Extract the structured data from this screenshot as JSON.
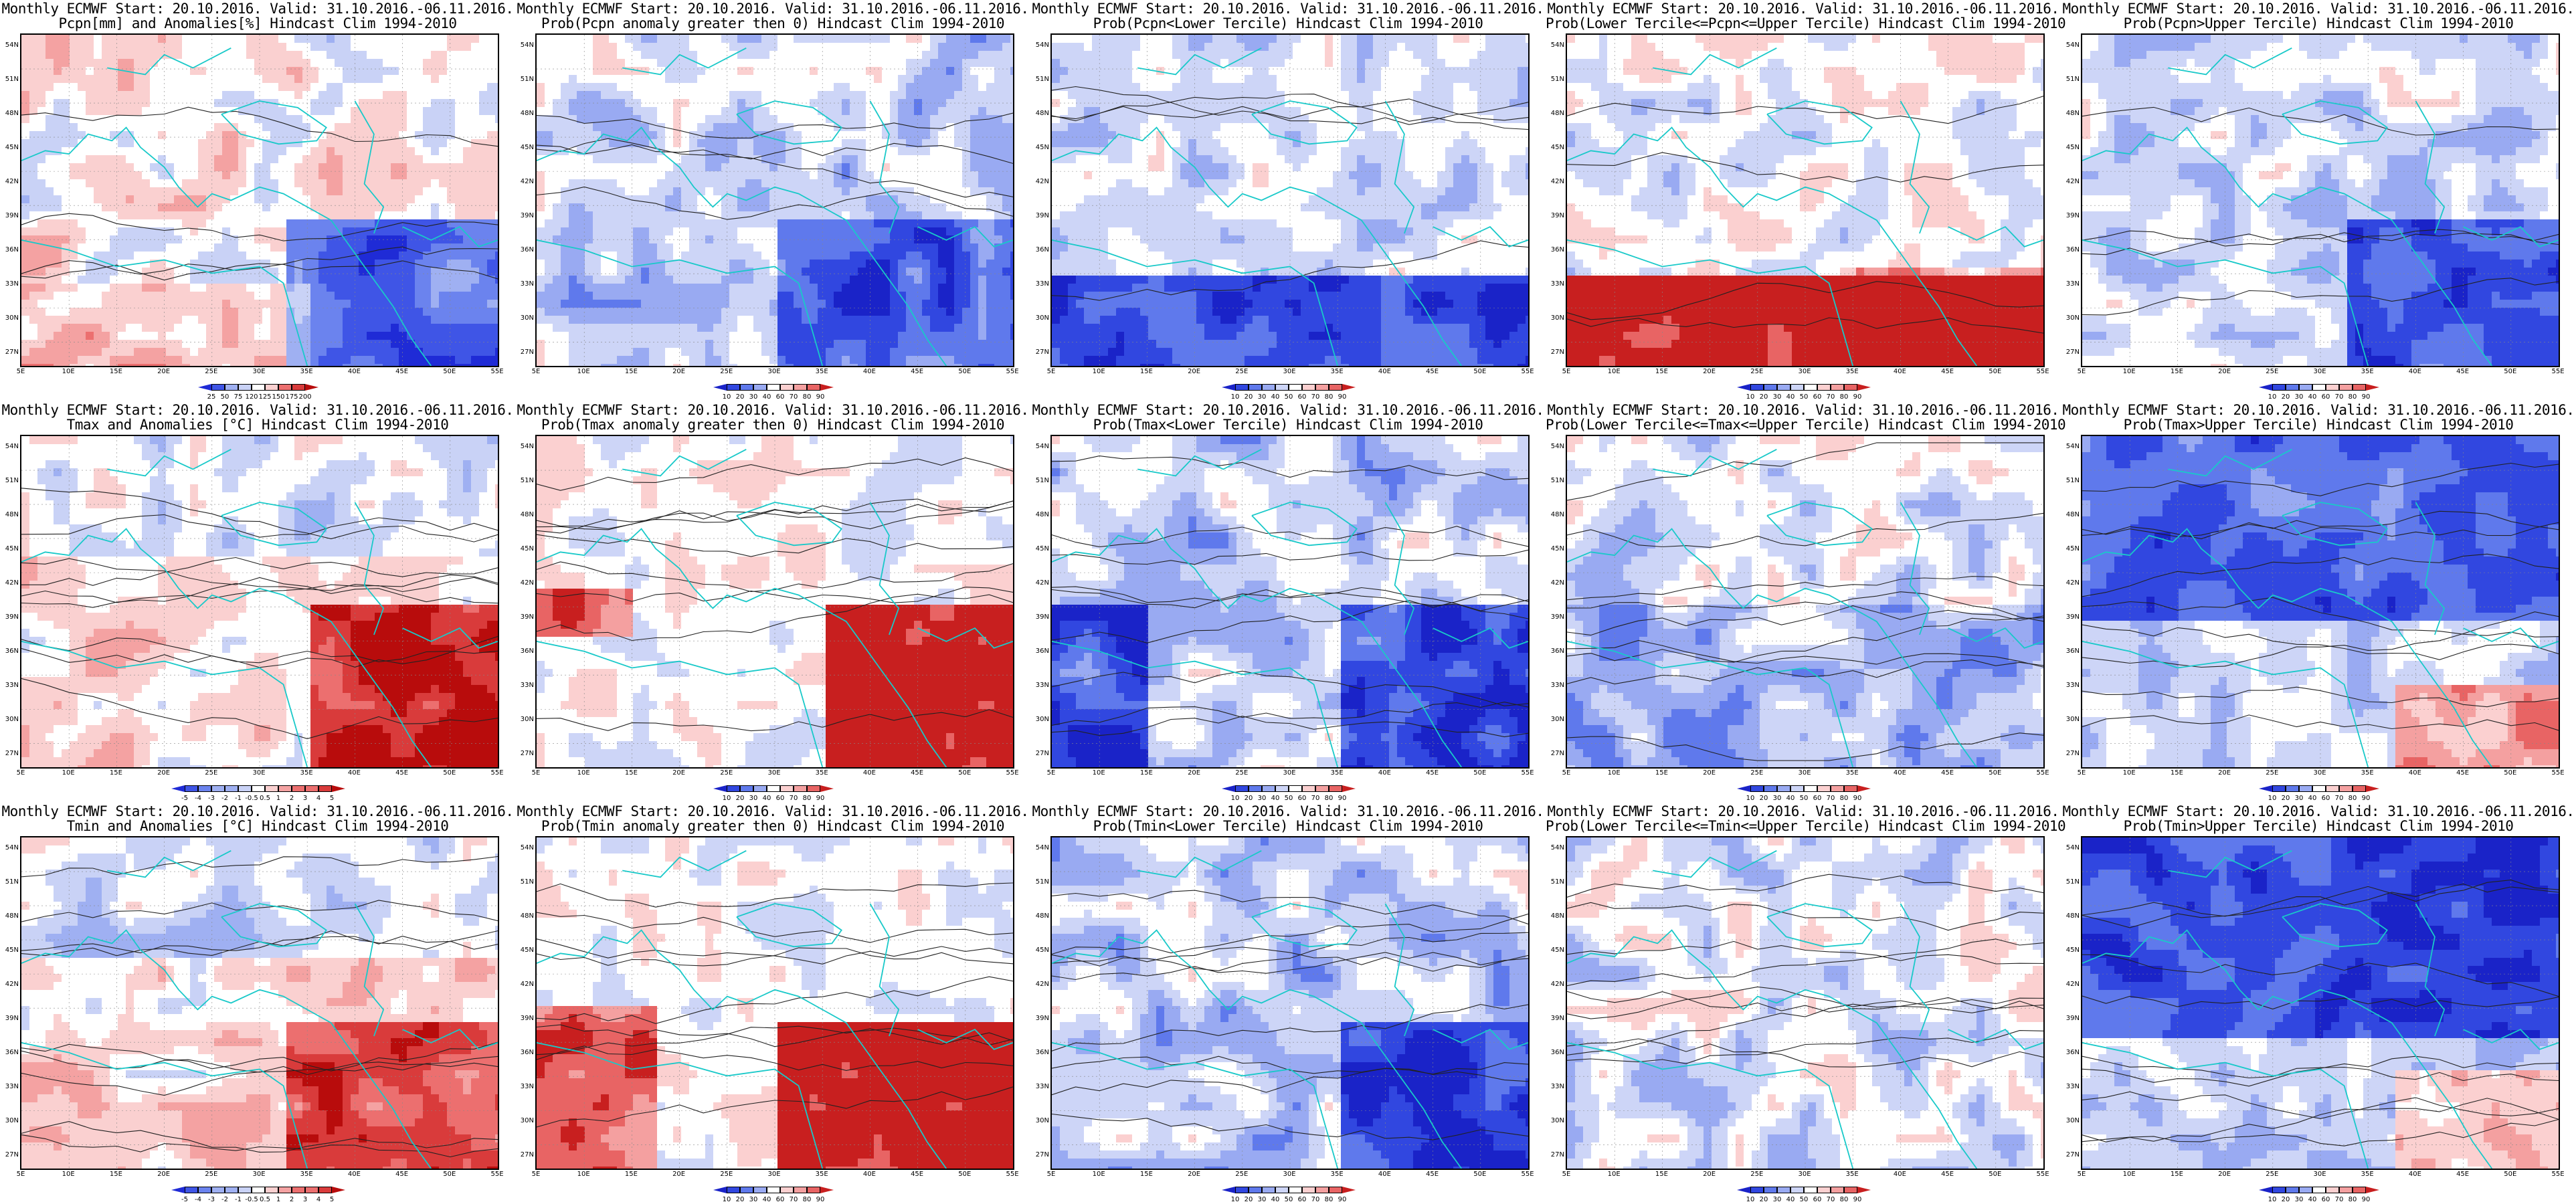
{
  "lat_ticks": [
    "54N",
    "51N",
    "48N",
    "45N",
    "42N",
    "39N",
    "36N",
    "33N",
    "30N",
    "27N"
  ],
  "lon_ticks": [
    "5E",
    "10E",
    "15E",
    "20E",
    "25E",
    "30E",
    "35E",
    "40E",
    "45E",
    "50E",
    "55E"
  ],
  "palettes": {
    "anom": [
      "#1f2bd6",
      "#3f55e6",
      "#6b83ee",
      "#9fb0f2",
      "#c9d2f6",
      "#ffffff",
      "#fad0d0",
      "#f4a2a2",
      "#ec6f6f",
      "#d93b3b",
      "#b80c0c"
    ],
    "prob": [
      "#1a23c8",
      "#3147e0",
      "#5f79ec",
      "#99aaf2",
      "#cdd5f7",
      "#ffffff",
      "#fbd0d0",
      "#f4a0a0",
      "#e86464",
      "#c81f1f"
    ]
  },
  "panels": [
    {
      "title1": "Monthly ECMWF Start: 20.10.2016. Valid: 31.10.2016.-06.11.2016.",
      "title2": "Pcpn[mm] and Anomalies[%] Hindcast Clim 1994-2010",
      "cbar": [
        "25",
        "50",
        "75",
        "120",
        "125",
        "150",
        "175",
        "200"
      ],
      "palette": "anom",
      "variable": "pcpn_anom"
    },
    {
      "title1": "Monthly ECMWF Start: 20.10.2016. Valid: 31.10.2016.-06.11.2016.",
      "title2": "Prob(Pcpn anomaly greater then 0) Hindcast Clim 1994-2010",
      "cbar": [
        "10",
        "20",
        "30",
        "40",
        "60",
        "70",
        "80",
        "90"
      ],
      "palette": "prob",
      "variable": "pcpn_pos"
    },
    {
      "title1": "Monthly ECMWF Start: 20.10.2016. Valid: 31.10.2016.-06.11.2016.",
      "title2": "Prob(Pcpn<Lower Tercile) Hindcast Clim 1994-2010",
      "cbar": [
        "10",
        "20",
        "30",
        "40",
        "50",
        "60",
        "70",
        "80",
        "90"
      ],
      "palette": "prob",
      "variable": "pcpn_low"
    },
    {
      "title1": "Monthly ECMWF Start: 20.10.2016. Valid: 31.10.2016.-06.11.2016.",
      "title2": "Prob(Lower Tercile<=Pcpn<=Upper Tercile) Hindcast Clim 1994-2010",
      "cbar": [
        "10",
        "20",
        "30",
        "40",
        "50",
        "60",
        "70",
        "80",
        "90"
      ],
      "palette": "prob",
      "variable": "pcpn_mid"
    },
    {
      "title1": "Monthly ECMWF Start: 20.10.2016. Valid: 31.10.2016.-06.11.2016.",
      "title2": "Prob(Pcpn>Upper Tercile) Hindcast Clim 1994-2010",
      "cbar": [
        "10",
        "20",
        "30",
        "40",
        "60",
        "70",
        "80",
        "90"
      ],
      "palette": "prob",
      "variable": "pcpn_up"
    },
    {
      "title1": "Monthly ECMWF Start: 20.10.2016. Valid: 31.10.2016.-06.11.2016.",
      "title2": "Tmax and Anomalies [°C] Hindcast Clim 1994-2010",
      "cbar": [
        "-5",
        "-4",
        "-3",
        "-2",
        "-1",
        "-0.5",
        "0.5",
        "1",
        "2",
        "3",
        "4",
        "5"
      ],
      "palette": "anom",
      "variable": "tmax_anom"
    },
    {
      "title1": "Monthly ECMWF Start: 20.10.2016. Valid: 31.10.2016.-06.11.2016.",
      "title2": "Prob(Tmax anomaly greater then 0) Hindcast Clim 1994-2010",
      "cbar": [
        "10",
        "20",
        "30",
        "40",
        "60",
        "70",
        "80",
        "90"
      ],
      "palette": "prob",
      "variable": "tmax_pos"
    },
    {
      "title1": "Monthly ECMWF Start: 20.10.2016. Valid: 31.10.2016.-06.11.2016.",
      "title2": "Prob(Tmax<Lower Tercile) Hindcast Clim 1994-2010",
      "cbar": [
        "10",
        "20",
        "30",
        "40",
        "50",
        "60",
        "70",
        "80",
        "90"
      ],
      "palette": "prob",
      "variable": "tmax_low"
    },
    {
      "title1": "Monthly ECMWF Start: 20.10.2016. Valid: 31.10.2016.-06.11.2016.",
      "title2": "Prob(Lower Tercile<=Tmax<=Upper Tercile) Hindcast Clim 1994-2010",
      "cbar": [
        "10",
        "20",
        "30",
        "40",
        "50",
        "60",
        "70",
        "80",
        "90"
      ],
      "palette": "prob",
      "variable": "tmax_mid"
    },
    {
      "title1": "Monthly ECMWF Start: 20.10.2016. Valid: 31.10.2016.-06.11.2016.",
      "title2": "Prob(Tmax>Upper Tercile) Hindcast Clim 1994-2010",
      "cbar": [
        "10",
        "20",
        "30",
        "40",
        "60",
        "70",
        "80",
        "90"
      ],
      "palette": "prob",
      "variable": "tmax_up"
    },
    {
      "title1": "Monthly ECMWF Start: 20.10.2016. Valid: 31.10.2016.-06.11.2016.",
      "title2": "Tmin and Anomalies [°C] Hindcast Clim 1994-2010",
      "cbar": [
        "-5",
        "-4",
        "-3",
        "-2",
        "-1",
        "-0.5",
        "0.5",
        "1",
        "2",
        "3",
        "4",
        "5"
      ],
      "palette": "anom",
      "variable": "tmin_anom"
    },
    {
      "title1": "Monthly ECMWF Start: 20.10.2016. Valid: 31.10.2016.-06.11.2016.",
      "title2": "Prob(Tmin anomaly greater then 0) Hindcast Clim 1994-2010",
      "cbar": [
        "10",
        "20",
        "30",
        "40",
        "60",
        "70",
        "80",
        "90"
      ],
      "palette": "prob",
      "variable": "tmin_pos"
    },
    {
      "title1": "Monthly ECMWF Start: 20.10.2016. Valid: 31.10.2016.-06.11.2016.",
      "title2": "Prob(Tmin<Lower Tercile) Hindcast Clim 1994-2010",
      "cbar": [
        "10",
        "20",
        "30",
        "40",
        "50",
        "60",
        "70",
        "80",
        "90"
      ],
      "palette": "prob",
      "variable": "tmin_low"
    },
    {
      "title1": "Monthly ECMWF Start: 20.10.2016. Valid: 31.10.2016.-06.11.2016.",
      "title2": "Prob(Lower Tercile<=Tmin<=Upper Tercile) Hindcast Clim 1994-2010",
      "cbar": [
        "10",
        "20",
        "30",
        "40",
        "50",
        "60",
        "70",
        "80",
        "90"
      ],
      "palette": "prob",
      "variable": "tmin_mid"
    },
    {
      "title1": "Monthly ECMWF Start: 20.10.2016. Valid: 31.10.2016.-06.11.2016.",
      "title2": "Prob(Tmin>Upper Tercile) Hindcast Clim 1994-2010",
      "cbar": [
        "10",
        "20",
        "30",
        "40",
        "60",
        "70",
        "80",
        "90"
      ],
      "palette": "prob",
      "variable": "tmin_up"
    }
  ]
}
